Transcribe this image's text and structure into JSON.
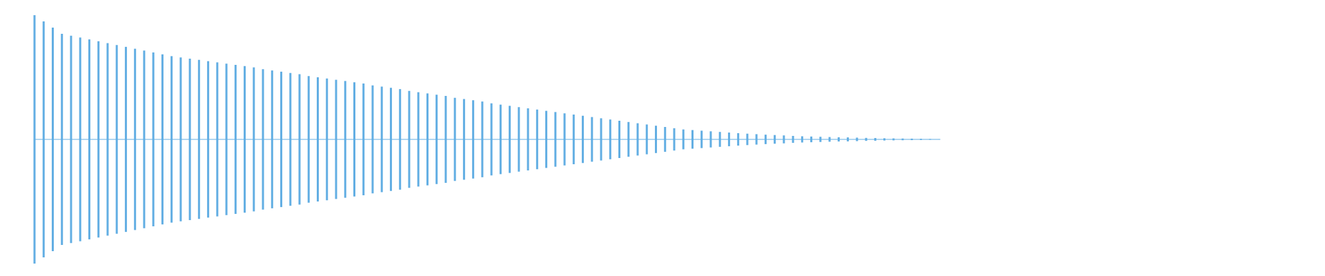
{
  "chart_data": {
    "type": "waveform",
    "color": "#62aee3",
    "ylim": [
      -1,
      1
    ],
    "values": [
      1.0,
      0.95,
      0.9,
      0.85,
      0.835,
      0.82,
      0.805,
      0.79,
      0.775,
      0.76,
      0.745,
      0.73,
      0.715,
      0.7,
      0.685,
      0.67,
      0.66,
      0.65,
      0.64,
      0.63,
      0.62,
      0.61,
      0.6,
      0.59,
      0.58,
      0.565,
      0.555,
      0.545,
      0.535,
      0.525,
      0.51,
      0.5,
      0.49,
      0.48,
      0.47,
      0.46,
      0.45,
      0.435,
      0.425,
      0.415,
      0.405,
      0.39,
      0.38,
      0.37,
      0.36,
      0.35,
      0.335,
      0.325,
      0.315,
      0.305,
      0.29,
      0.28,
      0.27,
      0.26,
      0.25,
      0.24,
      0.23,
      0.22,
      0.21,
      0.2,
      0.19,
      0.18,
      0.17,
      0.16,
      0.15,
      0.14,
      0.13,
      0.12,
      0.11,
      0.1,
      0.09,
      0.08,
      0.075,
      0.07,
      0.065,
      0.06,
      0.055,
      0.05,
      0.046,
      0.042,
      0.038,
      0.035,
      0.032,
      0.028,
      0.025,
      0.023,
      0.021,
      0.019,
      0.017,
      0.016,
      0.014,
      0.012,
      0.011,
      0.009,
      0.008,
      0.007,
      0.006,
      0.005,
      0.004,
      0.003
    ]
  }
}
